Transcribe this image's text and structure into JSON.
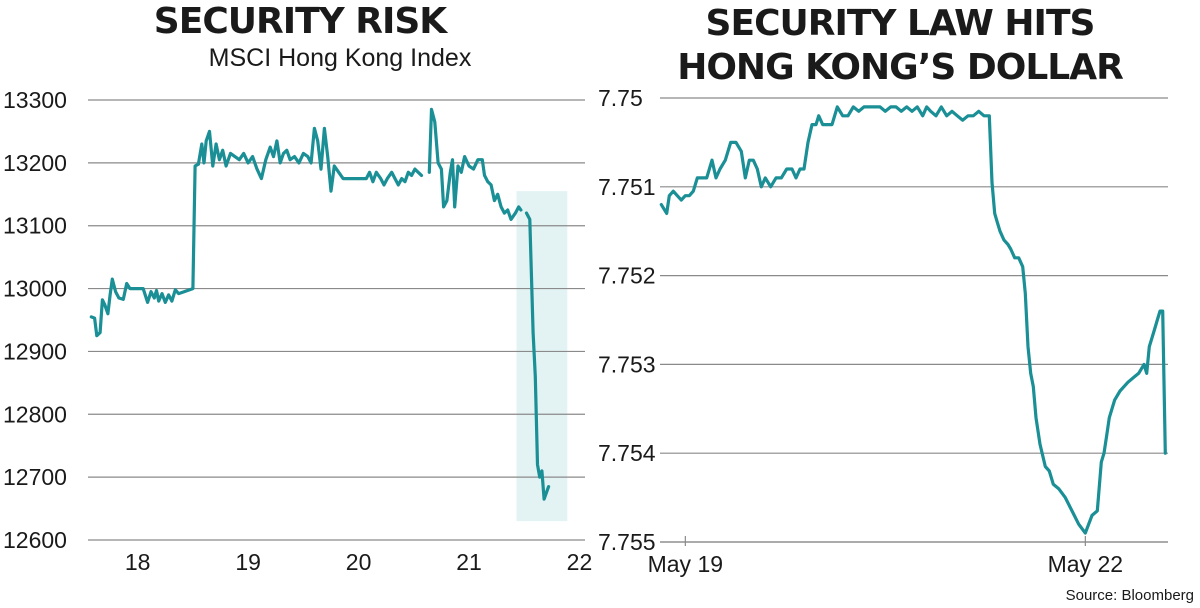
{
  "colors": {
    "line": "#1a8f96",
    "highlight": "#e3f3f4",
    "grid": "#8a8a8a",
    "text": "#1a1a1a"
  },
  "chart_data": [
    {
      "type": "line",
      "title": "SECURITY RISK",
      "subtitle": "MSCI Hong Kong Index",
      "x_ticks": [
        "18",
        "19",
        "20",
        "21",
        "22"
      ],
      "y_ticks": [
        "13300",
        "13200",
        "13100",
        "13000",
        "12900",
        "12800",
        "12700",
        "12600"
      ],
      "ylim": [
        12600,
        13300
      ],
      "xlim": [
        17.55,
        22.05
      ],
      "grid": true,
      "highlight_range": [
        21.43,
        21.89
      ],
      "highlight_ylim": [
        12630,
        13155
      ],
      "series": [
        {
          "points": [
            [
              17.58,
              12955
            ],
            [
              17.61,
              12953
            ],
            [
              17.63,
              12925
            ],
            [
              17.66,
              12930
            ],
            [
              17.68,
              12982
            ],
            [
              17.7,
              12975
            ],
            [
              17.73,
              12960
            ],
            [
              17.75,
              12990
            ],
            [
              17.77,
              13015
            ],
            [
              17.8,
              12995
            ],
            [
              17.83,
              12985
            ],
            [
              17.87,
              12983
            ],
            [
              17.9,
              13008
            ],
            [
              17.93,
              13000
            ],
            [
              18.05,
              13000
            ],
            [
              18.09,
              12978
            ],
            [
              18.12,
              12995
            ],
            [
              18.15,
              12985
            ],
            [
              18.17,
              12997
            ],
            [
              18.19,
              12980
            ],
            [
              18.22,
              12992
            ],
            [
              18.25,
              12978
            ],
            [
              18.28,
              12990
            ],
            [
              18.31,
              12980
            ],
            [
              18.34,
              12998
            ],
            [
              18.37,
              12992
            ],
            [
              18.42,
              12995
            ],
            [
              18.5,
              13000
            ],
            [
              18.52,
              13195
            ],
            [
              18.55,
              13198
            ]
          ]
        },
        {
          "points": [
            [
              18.55,
              13198
            ],
            [
              18.58,
              13230
            ],
            [
              18.6,
              13200
            ],
            [
              18.62,
              13235
            ],
            [
              18.65,
              13250
            ],
            [
              18.68,
              13195
            ],
            [
              18.71,
              13230
            ],
            [
              18.74,
              13205
            ],
            [
              18.77,
              13220
            ],
            [
              18.8,
              13195
            ],
            [
              18.84,
              13215
            ],
            [
              18.88,
              13210
            ],
            [
              18.92,
              13205
            ],
            [
              18.96,
              13215
            ],
            [
              19.0,
              13200
            ],
            [
              19.04,
              13210
            ],
            [
              19.08,
              13190
            ],
            [
              19.12,
              13175
            ],
            [
              19.16,
              13205
            ],
            [
              19.2,
              13225
            ],
            [
              19.23,
              13210
            ],
            [
              19.26,
              13235
            ],
            [
              19.29,
              13200
            ],
            [
              19.32,
              13215
            ],
            [
              19.35,
              13220
            ],
            [
              19.38,
              13205
            ],
            [
              19.42,
              13210
            ],
            [
              19.46,
              13200
            ],
            [
              19.5,
              13215
            ],
            [
              19.54,
              13210
            ],
            [
              19.57,
              13200
            ],
            [
              19.6,
              13255
            ],
            [
              19.63,
              13235
            ],
            [
              19.66,
              13190
            ],
            [
              19.69,
              13255
            ],
            [
              19.72,
              13210
            ],
            [
              19.75,
              13155
            ],
            [
              19.78,
              13195
            ],
            [
              19.82,
              13185
            ],
            [
              19.86,
              13175
            ],
            [
              19.92,
              13175
            ],
            [
              20.0,
              13175
            ],
            [
              20.07,
              13175
            ],
            [
              20.1,
              13185
            ],
            [
              20.13,
              13170
            ],
            [
              20.16,
              13185
            ],
            [
              20.2,
              13175
            ],
            [
              20.23,
              13165
            ],
            [
              20.26,
              13175
            ],
            [
              20.3,
              13185
            ],
            [
              20.33,
              13175
            ],
            [
              20.36,
              13165
            ],
            [
              20.39,
              13175
            ],
            [
              20.42,
              13170
            ],
            [
              20.45,
              13185
            ],
            [
              20.48,
              13180
            ],
            [
              20.51,
              13190
            ],
            [
              20.54,
              13185
            ],
            [
              20.57,
              13180
            ]
          ]
        },
        {
          "points": [
            [
              20.64,
              13185
            ],
            [
              20.66,
              13285
            ],
            [
              20.69,
              13265
            ],
            [
              20.72,
              13200
            ],
            [
              20.75,
              13190
            ],
            [
              20.77,
              13130
            ],
            [
              20.8,
              13140
            ],
            [
              20.83,
              13185
            ],
            [
              20.85,
              13205
            ],
            [
              20.87,
              13130
            ],
            [
              20.9,
              13195
            ],
            [
              20.93,
              13185
            ],
            [
              20.96,
              13210
            ],
            [
              21.0,
              13195
            ],
            [
              21.04,
              13190
            ],
            [
              21.08,
              13205
            ],
            [
              21.12,
              13205
            ],
            [
              21.14,
              13180
            ],
            [
              21.17,
              13170
            ],
            [
              21.2,
              13165
            ],
            [
              21.23,
              13140
            ],
            [
              21.26,
              13150
            ],
            [
              21.29,
              13130
            ],
            [
              21.32,
              13120
            ],
            [
              21.35,
              13125
            ],
            [
              21.38,
              13110
            ],
            [
              21.42,
              13120
            ],
            [
              21.45,
              13130
            ],
            [
              21.47,
              13125
            ]
          ]
        },
        {
          "points": [
            [
              21.52,
              13120
            ],
            [
              21.55,
              13110
            ],
            [
              21.58,
              12930
            ],
            [
              21.6,
              12860
            ],
            [
              21.62,
              12720
            ],
            [
              21.64,
              12700
            ],
            [
              21.66,
              12710
            ],
            [
              21.68,
              12665
            ],
            [
              21.72,
              12685
            ]
          ]
        }
      ]
    },
    {
      "type": "line",
      "title_lines": [
        "SECURITY LAW HITS",
        "HONG KONG’S DOLLAR"
      ],
      "x_ticks": [
        {
          "label": "May 19",
          "x": 0
        },
        {
          "label": "May 22",
          "x": 3
        }
      ],
      "y_ticks": [
        "7.75",
        "7.751",
        "7.752",
        "7.753",
        "7.754",
        "7.755"
      ],
      "ylim": [
        7.75,
        7.755
      ],
      "y_inverted": true,
      "xlim": [
        -0.19,
        3.62
      ],
      "grid": true,
      "series": [
        {
          "points": [
            [
              -0.18,
              7.7512
            ],
            [
              -0.14,
              7.7513
            ],
            [
              -0.12,
              7.7511
            ],
            [
              -0.09,
              7.75105
            ],
            [
              -0.06,
              7.7511
            ],
            [
              -0.03,
              7.75115
            ],
            [
              0.0,
              7.7511
            ],
            [
              0.03,
              7.7511
            ],
            [
              0.06,
              7.75105
            ],
            [
              0.09,
              7.7509
            ],
            [
              0.12,
              7.7509
            ],
            [
              0.16,
              7.7509
            ],
            [
              0.2,
              7.7507
            ],
            [
              0.23,
              7.7509
            ],
            [
              0.26,
              7.7508
            ],
            [
              0.3,
              7.7507
            ],
            [
              0.34,
              7.7505
            ],
            [
              0.38,
              7.7505
            ],
            [
              0.42,
              7.7506
            ],
            [
              0.45,
              7.7509
            ],
            [
              0.48,
              7.7507
            ],
            [
              0.51,
              7.7507
            ],
            [
              0.54,
              7.7508
            ],
            [
              0.57,
              7.751
            ],
            [
              0.6,
              7.7509
            ],
            [
              0.64,
              7.751
            ],
            [
              0.68,
              7.7509
            ],
            [
              0.72,
              7.7509
            ],
            [
              0.76,
              7.7508
            ],
            [
              0.8,
              7.7508
            ],
            [
              0.83,
              7.7509
            ],
            [
              0.86,
              7.7508
            ],
            [
              0.89,
              7.7508
            ],
            [
              0.92,
              7.7505
            ],
            [
              0.95,
              7.7503
            ],
            [
              0.98,
              7.7503
            ],
            [
              1.0,
              7.7502
            ],
            [
              1.03,
              7.7503
            ],
            [
              1.07,
              7.7503
            ],
            [
              1.1,
              7.7503
            ],
            [
              1.14,
              7.7501
            ],
            [
              1.18,
              7.7502
            ],
            [
              1.22,
              7.7502
            ],
            [
              1.26,
              7.7501
            ],
            [
              1.3,
              7.75015
            ],
            [
              1.34,
              7.7501
            ],
            [
              1.38,
              7.7501
            ],
            [
              1.42,
              7.7501
            ],
            [
              1.46,
              7.7501
            ],
            [
              1.5,
              7.75015
            ],
            [
              1.54,
              7.7501
            ],
            [
              1.58,
              7.7501
            ],
            [
              1.62,
              7.75015
            ],
            [
              1.66,
              7.7501
            ],
            [
              1.7,
              7.75015
            ],
            [
              1.74,
              7.7501
            ],
            [
              1.78,
              7.7502
            ],
            [
              1.81,
              7.7501
            ],
            [
              1.84,
              7.75015
            ],
            [
              1.88,
              7.7502
            ],
            [
              1.92,
              7.7501
            ],
            [
              1.96,
              7.7502
            ],
            [
              2.0,
              7.75015
            ],
            [
              2.04,
              7.7502
            ],
            [
              2.08,
              7.75025
            ],
            [
              2.12,
              7.7502
            ],
            [
              2.16,
              7.7502
            ],
            [
              2.2,
              7.75015
            ],
            [
              2.24,
              7.7502
            ],
            [
              2.28,
              7.7502
            ],
            [
              2.3,
              7.75095
            ],
            [
              2.32,
              7.7513
            ],
            [
              2.34,
              7.7514
            ],
            [
              2.36,
              7.7515
            ],
            [
              2.39,
              7.7516
            ],
            [
              2.42,
              7.75165
            ],
            [
              2.44,
              7.7517
            ],
            [
              2.47,
              7.7518
            ],
            [
              2.5,
              7.7518
            ],
            [
              2.53,
              7.7519
            ],
            [
              2.55,
              7.7522
            ],
            [
              2.57,
              7.7528
            ],
            [
              2.59,
              7.7531
            ],
            [
              2.61,
              7.75325
            ],
            [
              2.63,
              7.7536
            ],
            [
              2.66,
              7.7539
            ],
            [
              2.7,
              7.75415
            ],
            [
              2.73,
              7.7542
            ],
            [
              2.76,
              7.75435
            ],
            [
              2.8,
              7.7544
            ],
            [
              2.85,
              7.7545
            ],
            [
              2.9,
              7.75465
            ],
            [
              2.95,
              7.7548
            ],
            [
              3.0,
              7.7549
            ],
            [
              3.05,
              7.7547
            ],
            [
              3.09,
              7.75465
            ],
            [
              3.12,
              7.7541
            ],
            [
              3.14,
              7.754
            ],
            [
              3.16,
              7.7538
            ],
            [
              3.18,
              7.7536
            ],
            [
              3.22,
              7.7534
            ],
            [
              3.26,
              7.7533
            ],
            [
              3.29,
              7.75325
            ],
            [
              3.32,
              7.7532
            ],
            [
              3.36,
              7.75315
            ],
            [
              3.4,
              7.7531
            ],
            [
              3.44,
              7.753
            ],
            [
              3.46,
              7.7531
            ],
            [
              3.48,
              7.7528
            ],
            [
              3.5,
              7.7527
            ],
            [
              3.52,
              7.7526
            ],
            [
              3.54,
              7.7525
            ],
            [
              3.56,
              7.7524
            ],
            [
              3.58,
              7.7524
            ],
            [
              3.6,
              7.754
            ]
          ]
        }
      ]
    }
  ],
  "source": "Source: Bloomberg"
}
